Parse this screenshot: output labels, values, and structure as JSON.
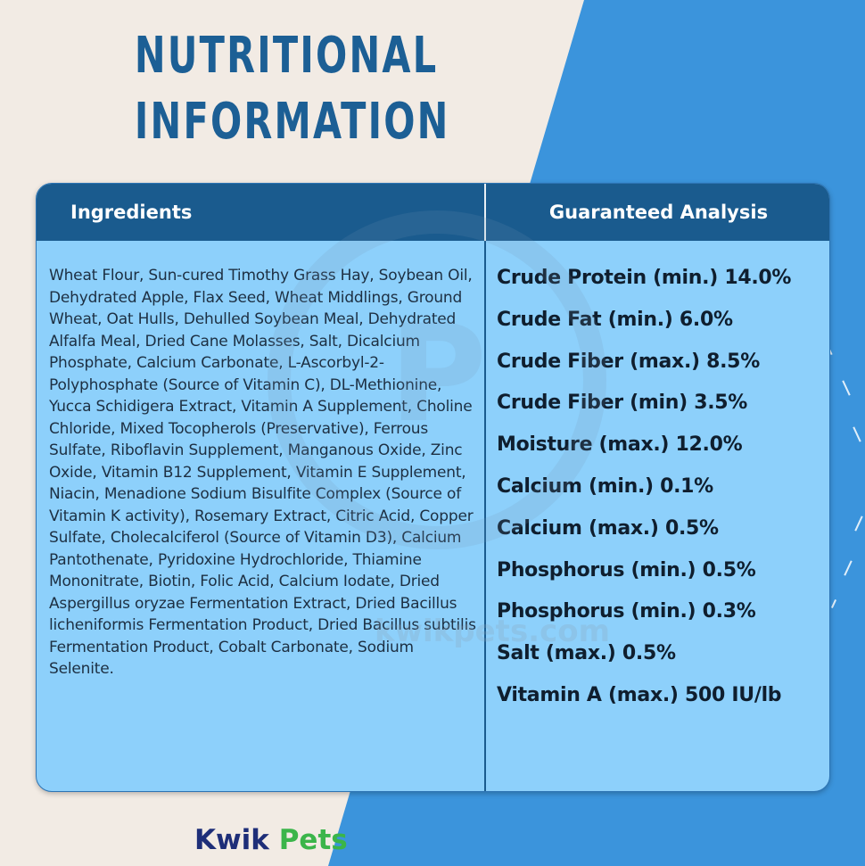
{
  "title": {
    "line1": "NUTRITIONAL",
    "line2": "INFORMATION"
  },
  "table": {
    "ingredients_header": "Ingredients",
    "analysis_header": "Guaranteed Analysis",
    "ingredients_text": "Wheat Flour, Sun-cured Timothy Grass Hay, Soybean Oil, Dehydrated Apple, Flax Seed, Wheat Middlings, Ground Wheat, Oat Hulls, Dehulled Soybean Meal, Dehydrated Alfalfa Meal, Dried Cane Molasses, Salt, Dicalcium Phosphate, Calcium Carbonate, L-Ascorbyl-2-Polyphosphate (Source of Vitamin C), DL-Methionine, Yucca Schidigera Extract, Vitamin A Supplement, Choline Chloride, Mixed Tocopherols (Preservative), Ferrous Sulfate, Riboflavin Supplement, Manganous Oxide, Zinc Oxide, Vitamin B12 Supplement, Vitamin E Supplement, Niacin, Menadione Sodium Bisulfite Complex (Source of Vitamin K activity), Rosemary Extract, Citric Acid, Copper Sulfate, Cholecalciferol (Source of Vitamin D3), Calcium Pantothenate, Pyridoxine Hydrochloride, Thiamine Mononitrate, Biotin, Folic Acid, Calcium Iodate, Dried Aspergillus oryzae Fermentation Extract, Dried Bacillus licheniformis Fermentation Product, Dried Bacillus subtilis Fermentation Product, Cobalt Carbonate, Sodium Selenite.",
    "analysis": [
      "Crude Protein (min.) 14.0%",
      "Crude Fat (min.) 6.0%",
      "Crude Fiber (max.) 8.5%",
      "Crude Fiber (min) 3.5%",
      "Moisture (max.) 12.0%",
      "Calcium (min.) 0.1%",
      "Calcium (max.) 0.5%",
      "Phosphorus (min.) 0.5%",
      "Phosphorus (min.) 0.3%",
      "Salt (max.) 0.5%",
      "Vitamin A (max.) 500 IU/lb"
    ]
  },
  "watermark": {
    "text": "kwikpets.com",
    "letter": "P"
  },
  "brand": {
    "part1": "Kwik",
    "part2": "Pets"
  },
  "colors": {
    "background_cream": "#f2ebe4",
    "background_blue": "#3b94dc",
    "header_navy": "#1a5b8e",
    "card_light_blue": "#8dd0fb",
    "title_blue": "#1c5f95",
    "brand_navy": "#1e2e78",
    "brand_green": "#3bb54a"
  }
}
